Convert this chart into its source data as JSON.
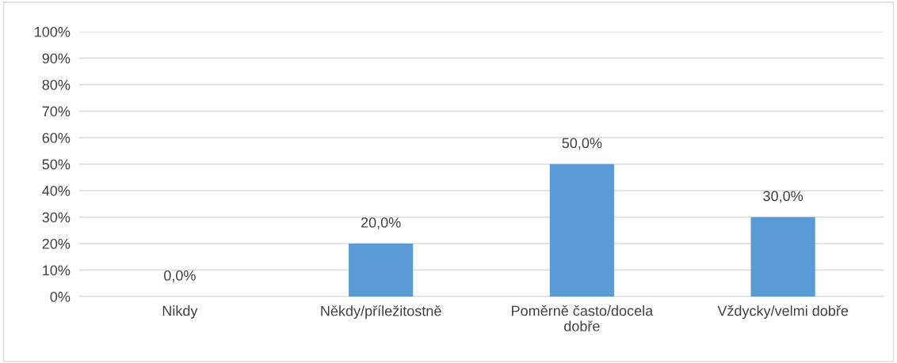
{
  "chart_data": {
    "type": "bar",
    "categories": [
      "Nikdy",
      "Někdy/příležitostně",
      "Poměrně často/docela\ndobře",
      "Vždycky/velmi dobře"
    ],
    "values": [
      0,
      20,
      50,
      30
    ],
    "color": "#5b9bd5",
    "value_labels": [
      "0,0%",
      "20,0%",
      "50,0%",
      "30,0%"
    ],
    "ylim": [
      0,
      100
    ],
    "yticks": [
      {
        "value": 0,
        "label": "0%"
      },
      {
        "value": 10,
        "label": "10%"
      },
      {
        "value": 20,
        "label": "20%"
      },
      {
        "value": 30,
        "label": "30%"
      },
      {
        "value": 40,
        "label": "40%"
      },
      {
        "value": 50,
        "label": "50%"
      },
      {
        "value": 60,
        "label": "60%"
      },
      {
        "value": 70,
        "label": "70%"
      },
      {
        "value": 80,
        "label": "80%"
      },
      {
        "value": 90,
        "label": "90%"
      },
      {
        "value": 100,
        "label": "100%"
      }
    ],
    "grid": "y",
    "legend": false
  }
}
